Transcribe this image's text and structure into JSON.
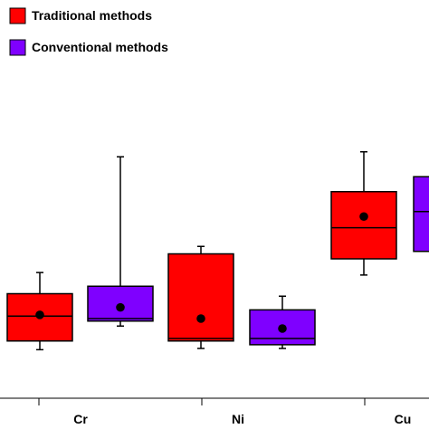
{
  "chart_data": {
    "type": "box",
    "title": "",
    "xlabel": "",
    "ylabel": "",
    "categories": [
      "Cr",
      "Ni",
      "Cu"
    ],
    "ylim": [
      0,
      10
    ],
    "grid": false,
    "legend_position": "top-left",
    "series": [
      {
        "name": "Traditional methods",
        "color": "#ff0000",
        "boxes": [
          {
            "category": "Cr",
            "whisker_low": 1.95,
            "q1": 2.3,
            "median": 3.3,
            "q3": 4.2,
            "whisker_high": 5.05,
            "mean": 3.35
          },
          {
            "category": "Ni",
            "whisker_low": 2.0,
            "q1": 2.3,
            "median": 2.4,
            "q3": 5.8,
            "whisker_high": 6.1,
            "mean": 3.2
          },
          {
            "category": "Cu",
            "whisker_low": 4.95,
            "q1": 5.6,
            "median": 6.85,
            "q3": 8.3,
            "whisker_high": 9.9,
            "mean": 7.3
          }
        ]
      },
      {
        "name": "Conventional methods",
        "color": "#7f00ff",
        "boxes": [
          {
            "category": "Cr",
            "whisker_low": 2.9,
            "q1": 3.1,
            "median": 3.2,
            "q3": 4.5,
            "whisker_high": 9.7,
            "mean": 3.65
          },
          {
            "category": "Ni",
            "whisker_low": 2.0,
            "q1": 2.15,
            "median": 2.4,
            "q3": 3.55,
            "whisker_high": 4.1,
            "mean": 2.8
          },
          {
            "category": "Cu",
            "whisker_low": 5.9,
            "q1": 5.9,
            "median": 7.5,
            "q3": 8.9,
            "whisker_high": 8.9,
            "mean": null
          }
        ]
      }
    ]
  }
}
